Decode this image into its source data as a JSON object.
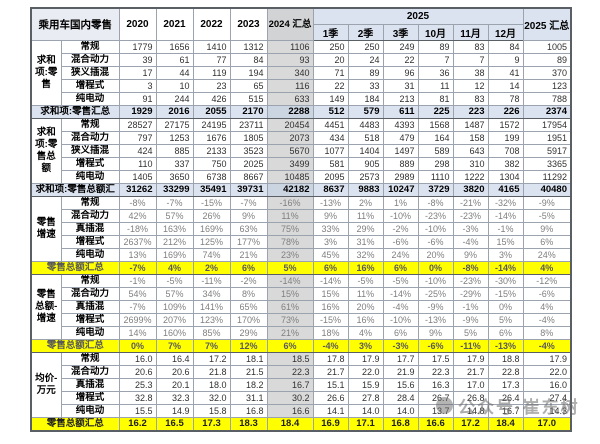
{
  "watermark": {
    "text": "公众号·崔东树"
  },
  "colors": {
    "header_blue": "#dce3f0",
    "col_2024_gray": "#d9d9d9",
    "total_blue": "#dce3f0",
    "total_yellow": "#ffff00",
    "percent_text_gray": "#7f7f7f"
  },
  "chart_data": {
    "type": "table",
    "title": "乘用车国内零售",
    "col_group_2025": "2025",
    "columns": [
      "2020",
      "2021",
      "2022",
      "2023",
      "2024 汇总",
      "1季",
      "2季",
      "3季",
      "10月",
      "11月",
      "12月",
      "2025 汇总"
    ],
    "sections": [
      {
        "group_label": "求和项:零售",
        "value_style": "dark",
        "rows": [
          {
            "label": "常规",
            "values": [
              "1779",
              "1656",
              "1410",
              "1312",
              "1106",
              "250",
              "250",
              "249",
              "89",
              "83",
              "84",
              "1005"
            ]
          },
          {
            "label": "混合动力",
            "values": [
              "39",
              "61",
              "77",
              "84",
              "93",
              "20",
              "24",
              "22",
              "7",
              "7",
              "9",
              "89"
            ]
          },
          {
            "label": "狭义插混",
            "values": [
              "17",
              "44",
              "119",
              "194",
              "340",
              "71",
              "89",
              "96",
              "36",
              "38",
              "41",
              "370"
            ]
          },
          {
            "label": "增程式",
            "values": [
              "3",
              "10",
              "23",
              "65",
              "116",
              "22",
              "33",
              "31",
              "11",
              "12",
              "14",
              "123"
            ]
          },
          {
            "label": "纯电动",
            "values": [
              "91",
              "244",
              "426",
              "515",
              "633",
              "149",
              "184",
              "213",
              "81",
              "83",
              "78",
              "788"
            ]
          }
        ],
        "total": {
          "label": "求和项:零售汇总",
          "style": "blue",
          "values": [
            "1929",
            "2016",
            "2055",
            "2170",
            "2288",
            "512",
            "579",
            "611",
            "225",
            "223",
            "226",
            "2374"
          ]
        }
      },
      {
        "group_label": "求和项:零售总额",
        "value_style": "dark",
        "rows": [
          {
            "label": "常规",
            "values": [
              "28527",
              "27175",
              "24195",
              "23711",
              "20454",
              "4451",
              "4483",
              "4393",
              "1568",
              "1487",
              "1572",
              "17954"
            ]
          },
          {
            "label": "混合动力",
            "values": [
              "797",
              "1253",
              "1676",
              "1805",
              "2073",
              "434",
              "518",
              "479",
              "164",
              "158",
              "199",
              "1951"
            ]
          },
          {
            "label": "狭义插混",
            "values": [
              "424",
              "885",
              "2133",
              "3523",
              "5670",
              "1077",
              "1404",
              "1497",
              "589",
              "643",
              "708",
              "5917"
            ]
          },
          {
            "label": "增程式",
            "values": [
              "110",
              "337",
              "750",
              "2025",
              "3499",
              "581",
              "905",
              "889",
              "298",
              "310",
              "382",
              "3365"
            ]
          },
          {
            "label": "纯电动",
            "values": [
              "1405",
              "3650",
              "6738",
              "8667",
              "10485",
              "2095",
              "2573",
              "2989",
              "1110",
              "1222",
              "1304",
              "11292"
            ]
          }
        ],
        "total": {
          "label": "求和项:零售总额汇",
          "style": "blue",
          "values": [
            "31262",
            "33299",
            "35491",
            "39731",
            "42182",
            "8637",
            "9883",
            "10247",
            "3729",
            "3820",
            "4165",
            "40480"
          ]
        }
      },
      {
        "group_label": "零售增速",
        "value_style": "gray",
        "rows": [
          {
            "label": "常规",
            "values": [
              "-8%",
              "-7%",
              "-15%",
              "-7%",
              "-16%",
              "-13%",
              "2%",
              "1%",
              "-8%",
              "-21%",
              "-32%",
              "-9%"
            ]
          },
          {
            "label": "混合动力",
            "values": [
              "42%",
              "57%",
              "26%",
              "9%",
              "11%",
              "9%",
              "11%",
              "-10%",
              "-23%",
              "-23%",
              "-14%",
              "-5%"
            ]
          },
          {
            "label": "真插混",
            "values": [
              "-18%",
              "163%",
              "169%",
              "63%",
              "75%",
              "33%",
              "29%",
              "-2%",
              "-10%",
              "-3%",
              "-1%",
              "9%"
            ]
          },
          {
            "label": "增程式",
            "values": [
              "2637%",
              "212%",
              "125%",
              "177%",
              "78%",
              "3%",
              "31%",
              "-6%",
              "-6%",
              "-4%",
              "15%",
              "6%"
            ]
          },
          {
            "label": "纯电动",
            "values": [
              "13%",
              "169%",
              "74%",
              "21%",
              "23%",
              "45%",
              "32%",
              "24%",
              "20%",
              "9%",
              "3%",
              "24%"
            ]
          }
        ],
        "total": {
          "label": "零售总额汇总",
          "style": "yellow",
          "values": [
            "-7%",
            "4%",
            "2%",
            "6%",
            "5%",
            "6%",
            "16%",
            "6%",
            "0%",
            "-8%",
            "-14%",
            "4%"
          ]
        }
      },
      {
        "group_label": "零售总额-增速",
        "value_style": "gray",
        "rows": [
          {
            "label": "常规",
            "values": [
              "-1%",
              "-5%",
              "-11%",
              "-2%",
              "-14%",
              "-14%",
              "-5%",
              "-5%",
              "-10%",
              "-23%",
              "-30%",
              "-12%"
            ]
          },
          {
            "label": "混合动力",
            "values": [
              "54%",
              "57%",
              "34%",
              "8%",
              "15%",
              "15%",
              "11%",
              "-14%",
              "-25%",
              "-29%",
              "-15%",
              "-6%"
            ]
          },
          {
            "label": "真插混",
            "values": [
              "-7%",
              "109%",
              "141%",
              "65%",
              "61%",
              "16%",
              "20%",
              "-4%",
              "-9%",
              "-1%",
              "0%",
              "4%"
            ]
          },
          {
            "label": "增程式",
            "values": [
              "2699%",
              "207%",
              "123%",
              "170%",
              "73%",
              "-15%",
              "16%",
              "-10%",
              "-13%",
              "-9%",
              "5%",
              "-4%"
            ]
          },
          {
            "label": "纯电动",
            "values": [
              "14%",
              "160%",
              "85%",
              "29%",
              "21%",
              "18%",
              "4%",
              "6%",
              "9%",
              "5%",
              "6%",
              "8%"
            ]
          }
        ],
        "total": {
          "label": "零售总额汇总",
          "style": "yellow",
          "values": [
            "0%",
            "7%",
            "7%",
            "12%",
            "6%",
            "-4%",
            "3%",
            "-3%",
            "-6%",
            "-11%",
            "-13%",
            "-4%"
          ]
        }
      },
      {
        "group_label": "均价-万元",
        "value_style": "dark",
        "rows": [
          {
            "label": "常规",
            "values": [
              "16.0",
              "16.4",
              "17.2",
              "18.1",
              "18.5",
              "17.8",
              "17.9",
              "17.7",
              "17.5",
              "17.9",
              "18.8",
              "17.9"
            ]
          },
          {
            "label": "混合动力",
            "values": [
              "20.6",
              "20.6",
              "21.8",
              "21.5",
              "22.3",
              "21.7",
              "22.0",
              "21.9",
              "22.3",
              "21.7",
              "22.8",
              "22.0"
            ]
          },
          {
            "label": "真插混",
            "values": [
              "25.3",
              "20.1",
              "18.0",
              "18.2",
              "16.7",
              "15.1",
              "15.9",
              "15.6",
              "16.3",
              "17.0",
              "17.3",
              "16.0"
            ]
          },
          {
            "label": "增程式",
            "values": [
              "32.8",
              "32.3",
              "32.0",
              "31.1",
              "30.2",
              "26.6",
              "27.8",
              "28.4",
              "26.7",
              "26.8",
              "26.4",
              "27.4"
            ]
          },
          {
            "label": "纯电动",
            "values": [
              "15.5",
              "14.9",
              "15.8",
              "16.8",
              "16.6",
              "14.1",
              "14.0",
              "14.0",
              "13.7",
              "14.8",
              "16.7",
              "14.3"
            ]
          }
        ],
        "total": {
          "label": "零售总额汇总",
          "style": "yellow-dark",
          "values": [
            "16.2",
            "16.5",
            "17.3",
            "18.3",
            "18.4",
            "16.9",
            "17.1",
            "16.8",
            "16.6",
            "17.2",
            "18.4",
            "17.0"
          ]
        }
      }
    ]
  }
}
